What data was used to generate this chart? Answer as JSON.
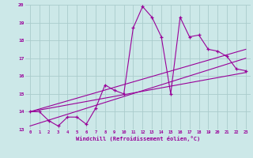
{
  "xlabel": "Windchill (Refroidissement éolien,°C)",
  "bg_color": "#cce8e8",
  "grid_color": "#aacccc",
  "line_color": "#990099",
  "xlim": [
    -0.5,
    23.5
  ],
  "ylim": [
    13,
    20
  ],
  "xticks": [
    0,
    1,
    2,
    3,
    4,
    5,
    6,
    7,
    8,
    9,
    10,
    11,
    12,
    13,
    14,
    15,
    16,
    17,
    18,
    19,
    20,
    21,
    22,
    23
  ],
  "yticks": [
    13,
    14,
    15,
    16,
    17,
    18,
    19,
    20
  ],
  "line1_x": [
    0,
    1,
    2,
    3,
    4,
    5,
    6,
    7,
    8,
    9,
    10,
    11,
    12,
    13,
    14,
    15,
    16,
    17,
    18,
    19,
    20,
    21,
    22,
    23
  ],
  "line1_y": [
    14.0,
    14.0,
    13.5,
    13.2,
    13.7,
    13.7,
    13.3,
    14.2,
    15.5,
    15.2,
    15.0,
    18.7,
    19.9,
    19.3,
    18.2,
    15.0,
    19.3,
    18.2,
    18.3,
    17.5,
    17.4,
    17.1,
    16.4,
    16.3
  ],
  "line2_x": [
    0,
    23
  ],
  "line2_y": [
    14.0,
    17.5
  ],
  "line3_x": [
    0,
    23
  ],
  "line3_y": [
    14.0,
    16.2
  ],
  "line4_x": [
    0,
    23
  ],
  "line4_y": [
    13.2,
    17.0
  ]
}
